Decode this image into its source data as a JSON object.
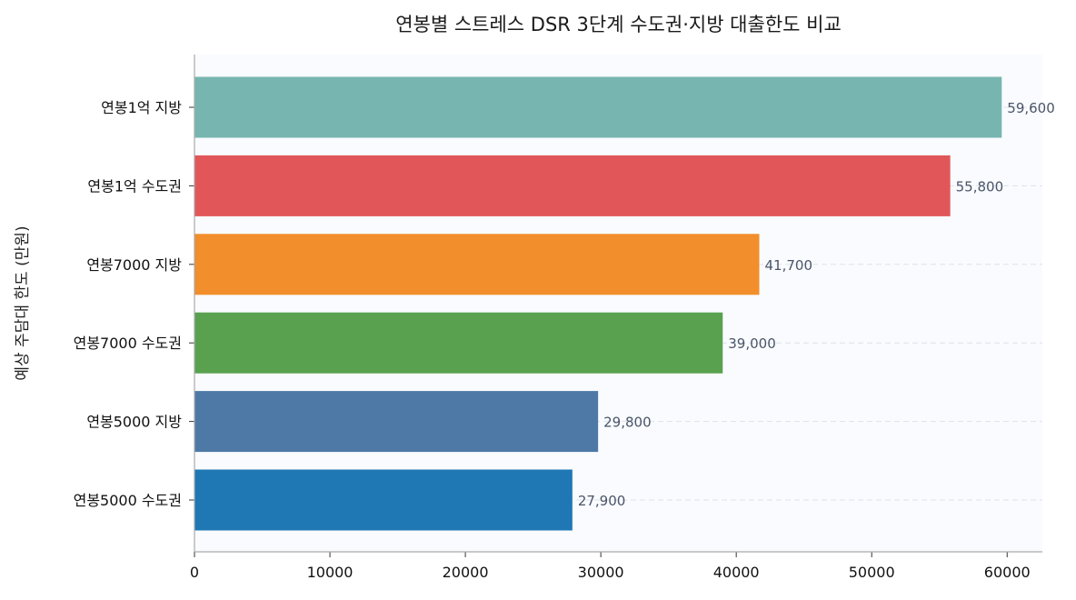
{
  "chart_data": {
    "type": "bar",
    "orientation": "horizontal",
    "title": "연봉별 스트레스 DSR 3단계 수도권·지방 대출한도 비교",
    "xlabel": "",
    "ylabel": "예상 주담대 한도 (만원)",
    "categories": [
      "연봉1억 지방",
      "연봉1억 수도권",
      "연봉7000 지방",
      "연봉7000 수도권",
      "연봉5000 지방",
      "연봉5000 수도권"
    ],
    "values": [
      59600,
      55800,
      41700,
      39000,
      29800,
      27900
    ],
    "value_labels": [
      "59,600",
      "55,800",
      "41,700",
      "39,000",
      "29,800",
      "27,900"
    ],
    "colors": [
      "#77b5b0",
      "#e15759",
      "#f28e2b",
      "#59a14f",
      "#4e79a7",
      "#1f77b4"
    ],
    "xlim": [
      0,
      62600
    ],
    "xticks": [
      "0",
      "10000",
      "20000",
      "30000",
      "40000",
      "50000",
      "60000"
    ],
    "xtick_values": [
      0,
      10000,
      20000,
      30000,
      40000,
      50000,
      60000
    ],
    "grid": "horizontal dashed",
    "background": "#f9fbfe"
  }
}
